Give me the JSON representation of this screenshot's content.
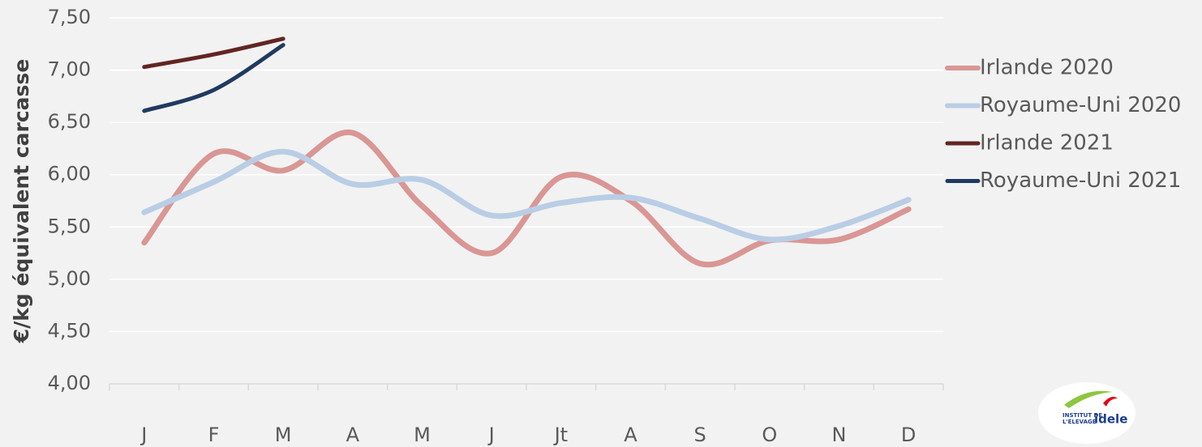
{
  "chart_data": {
    "type": "line",
    "y_label": "€/kg équivalent carcasse",
    "categories": [
      "J",
      "F",
      "M",
      "A",
      "M",
      "J",
      "Jt",
      "A",
      "S",
      "O",
      "N",
      "D"
    ],
    "series": [
      {
        "name": "Irlande 2020",
        "color": "#d99694",
        "values": [
          5.35,
          6.2,
          6.04,
          6.4,
          5.7,
          5.25,
          5.98,
          5.75,
          5.15,
          5.37,
          5.38,
          5.67
        ]
      },
      {
        "name": "Royaume-Uni 2020",
        "color": "#b9cde5",
        "values": [
          5.64,
          5.93,
          6.22,
          5.91,
          5.95,
          5.61,
          5.73,
          5.78,
          5.58,
          5.38,
          5.51,
          5.76
        ]
      },
      {
        "name": "Irlande 2021",
        "color": "#632523",
        "values": [
          7.03,
          7.15,
          7.3,
          null,
          null,
          null,
          null,
          null,
          null,
          null,
          null,
          null
        ]
      },
      {
        "name": "Royaume-Uni 2021",
        "color": "#203a60",
        "values": [
          6.61,
          6.81,
          7.24,
          null,
          null,
          null,
          null,
          null,
          null,
          null,
          null,
          null
        ]
      }
    ],
    "ylim": [
      4,
      7.5
    ],
    "yticks": [
      {
        "value": 4,
        "label": "4,00"
      },
      {
        "value": 4.5,
        "label": "4,50"
      },
      {
        "value": 5,
        "label": "5,00"
      },
      {
        "value": 5.5,
        "label": "5,50"
      },
      {
        "value": 6,
        "label": "6,00"
      },
      {
        "value": 6.5,
        "label": "6,50"
      },
      {
        "value": 7,
        "label": "7,00"
      },
      {
        "value": 7.5,
        "label": "7,50"
      }
    ],
    "grid": true,
    "legend": "right"
  },
  "logo": {
    "line1": "INSTITUT DE",
    "line2": "L'ELEVAGE",
    "brand": "idele"
  }
}
